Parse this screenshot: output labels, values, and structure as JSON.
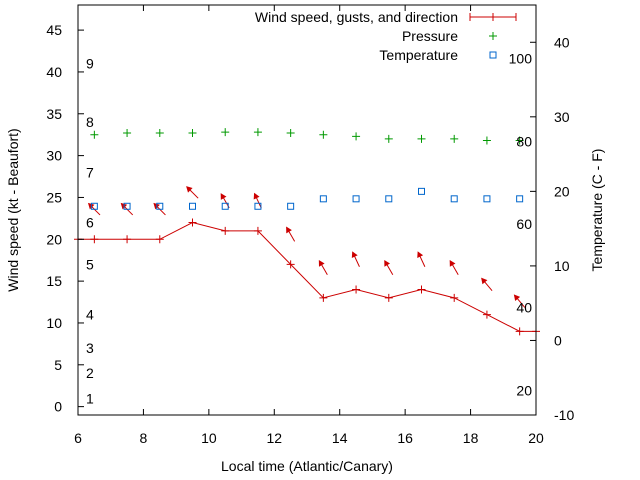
{
  "chart_data": {
    "type": "line",
    "xlabel": "Local time (Atlantic/Canary)",
    "ylabel_left": "Wind speed (kt - Beaufort)",
    "ylabel_right": "Temperature (C - F)",
    "xlim": [
      6,
      20
    ],
    "ylim_left": [
      -1,
      48
    ],
    "ylim_right": [
      -10,
      45
    ],
    "x_ticks": [
      "6",
      "8",
      "10",
      "12",
      "14",
      "16",
      "18",
      "20"
    ],
    "y_left_ticks": [
      "0",
      "5",
      "10",
      "15",
      "20",
      "25",
      "30",
      "35",
      "40",
      "45"
    ],
    "y_right_ticks": [
      "-10",
      "0",
      "10",
      "20",
      "30",
      "40"
    ],
    "beaufort_labels": [
      {
        "label": "1",
        "kt": 1
      },
      {
        "label": "2",
        "kt": 4
      },
      {
        "label": "3",
        "kt": 7
      },
      {
        "label": "4",
        "kt": 11
      },
      {
        "label": "5",
        "kt": 17
      },
      {
        "label": "6",
        "kt": 22
      },
      {
        "label": "7",
        "kt": 28
      },
      {
        "label": "8",
        "kt": 34
      },
      {
        "label": "9",
        "kt": 41
      }
    ],
    "fahrenheit_labels": [
      {
        "label": "20",
        "c": -6.7
      },
      {
        "label": "40",
        "c": 4.4
      },
      {
        "label": "60",
        "c": 15.6
      },
      {
        "label": "80",
        "c": 26.7
      },
      {
        "label": "100",
        "c": 37.8
      }
    ],
    "legend": [
      {
        "label": "Wind speed, gusts, and direction",
        "color": "#cc0000",
        "marker": "line-plus"
      },
      {
        "label": "Pressure",
        "color": "#009900",
        "marker": "plus"
      },
      {
        "label": "Temperature",
        "color": "#0066cc",
        "marker": "square"
      }
    ],
    "series": [
      {
        "name": "Wind speed, gusts, and direction",
        "axis": "left",
        "color": "#cc0000",
        "x": [
          6.0,
          6.5,
          7.5,
          8.5,
          9.5,
          10.5,
          11.5,
          12.5,
          13.5,
          14.5,
          15.5,
          16.5,
          17.5,
          18.5,
          19.5,
          20.0
        ],
        "y": [
          20,
          20,
          20,
          20,
          22,
          21,
          21,
          17,
          13,
          14,
          13,
          14,
          13,
          11,
          9,
          9
        ],
        "direction_arrows": [
          {
            "x": 6.5,
            "dir_deg": 315
          },
          {
            "x": 7.5,
            "dir_deg": 315
          },
          {
            "x": 8.5,
            "dir_deg": 315
          },
          {
            "x": 9.5,
            "dir_deg": 315
          },
          {
            "x": 10.5,
            "dir_deg": 330
          },
          {
            "x": 11.5,
            "dir_deg": 335
          },
          {
            "x": 12.5,
            "dir_deg": 330
          },
          {
            "x": 13.5,
            "dir_deg": 330
          },
          {
            "x": 14.5,
            "dir_deg": 335
          },
          {
            "x": 15.5,
            "dir_deg": 330
          },
          {
            "x": 16.5,
            "dir_deg": 335
          },
          {
            "x": 17.5,
            "dir_deg": 330
          },
          {
            "x": 18.5,
            "dir_deg": 320
          },
          {
            "x": 19.5,
            "dir_deg": 320
          }
        ]
      },
      {
        "name": "Pressure",
        "axis": "left",
        "color": "#009900",
        "x": [
          6.5,
          7.5,
          8.5,
          9.5,
          10.5,
          11.5,
          12.5,
          13.5,
          14.5,
          15.5,
          16.5,
          17.5,
          18.5,
          19.5
        ],
        "y": [
          32.5,
          32.7,
          32.7,
          32.7,
          32.8,
          32.8,
          32.7,
          32.5,
          32.3,
          32.0,
          32.0,
          32.0,
          31.8,
          31.8
        ]
      },
      {
        "name": "Temperature",
        "axis": "right",
        "color": "#0066cc",
        "x": [
          6.5,
          7.5,
          8.5,
          9.5,
          10.5,
          11.5,
          12.5,
          13.5,
          14.5,
          15.5,
          16.5,
          17.5,
          18.5,
          19.5
        ],
        "y": [
          18,
          18,
          18,
          18,
          18,
          18,
          18,
          19,
          19,
          19,
          20,
          19,
          19,
          19
        ]
      }
    ]
  }
}
